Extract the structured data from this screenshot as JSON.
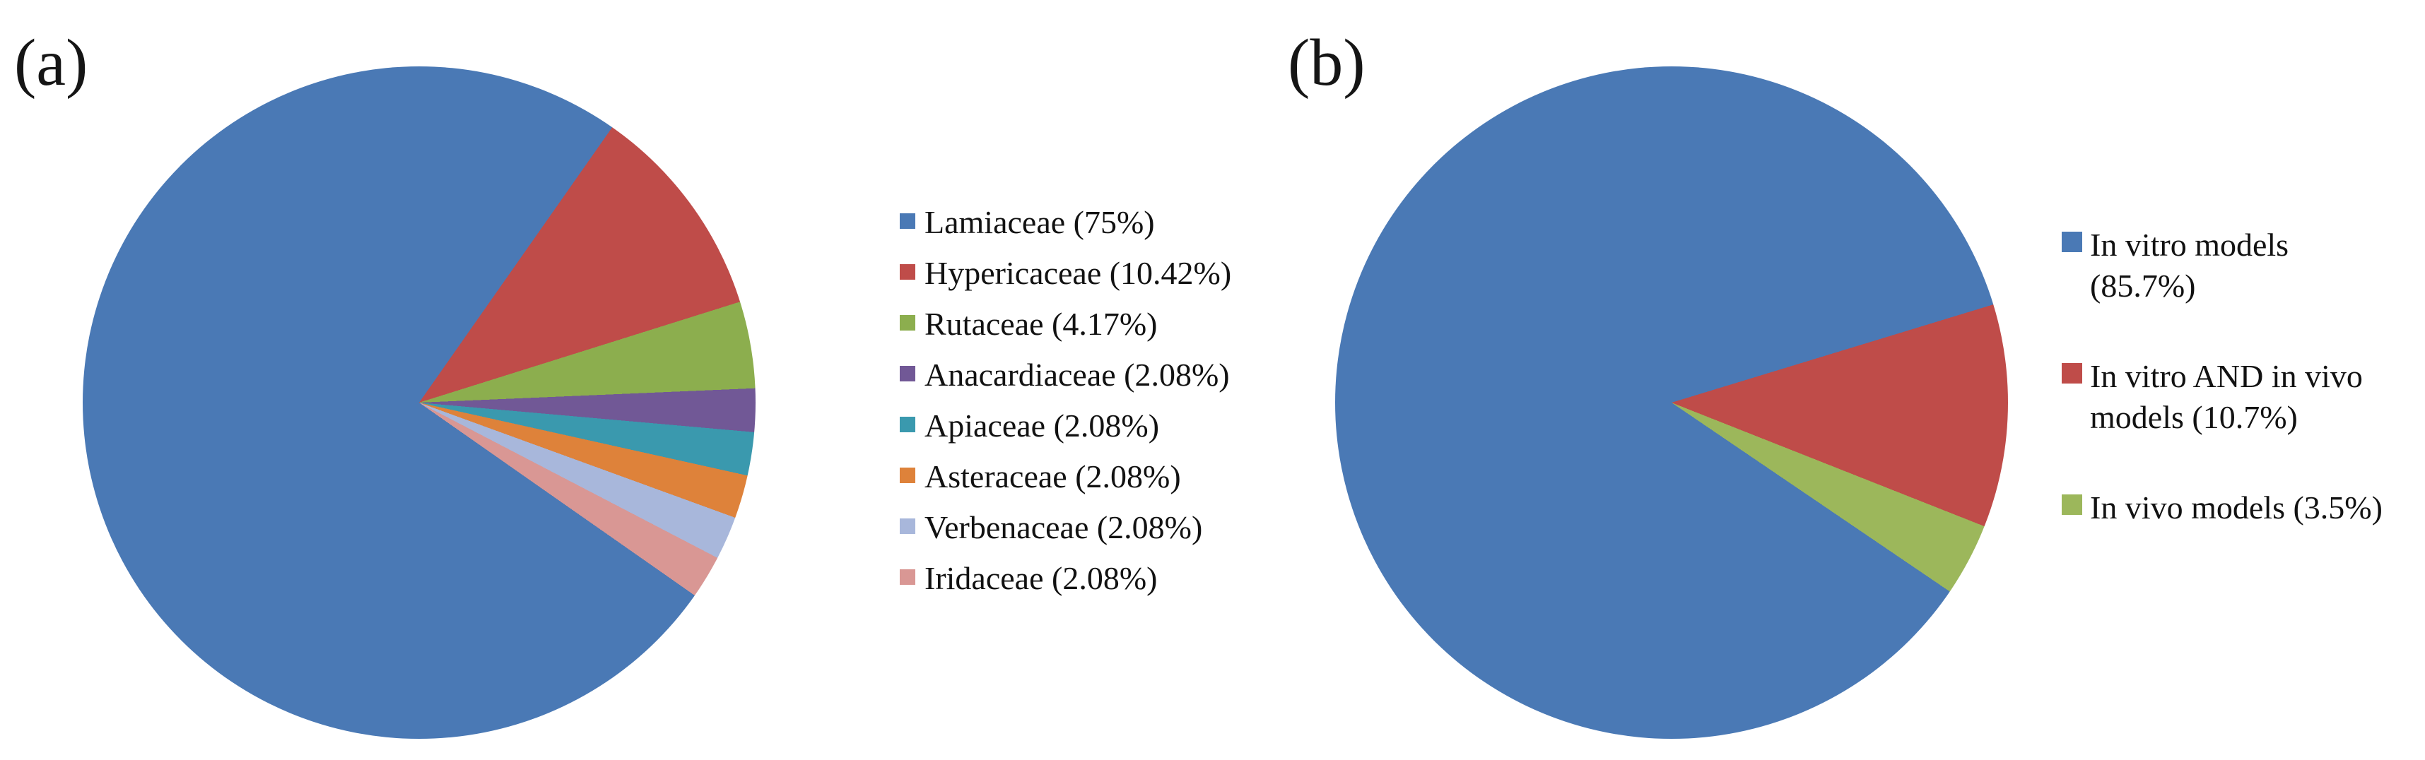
{
  "figure": {
    "background": "#ffffff",
    "panel_a_label": "(a)",
    "panel_b_label": "(b)"
  },
  "chart_data": [
    {
      "type": "pie",
      "panel_label": "(a)",
      "title": "",
      "legend_position": "right",
      "start_angle_deg": 125,
      "slices": [
        {
          "label": "Lamiaceae (75%)",
          "name": "Lamiaceae",
          "value": 75,
          "color": "#4A79B5"
        },
        {
          "label": "Hypericaceae (10.42%)",
          "name": "Hypericaceae",
          "value": 10.42,
          "color": "#BF4C49"
        },
        {
          "label": "Rutaceae (4.17%)",
          "name": "Rutaceae",
          "value": 4.17,
          "color": "#8CAE4E"
        },
        {
          "label": "Anacardiaceae (2.08%)",
          "name": "Anacardiaceae",
          "value": 2.08,
          "color": "#715896"
        },
        {
          "label": "Apiaceae (2.08%)",
          "name": "Apiaceae",
          "value": 2.08,
          "color": "#3A99AE"
        },
        {
          "label": "Asteraceae (2.08%)",
          "name": "Asteraceae",
          "value": 2.08,
          "color": "#DE823A"
        },
        {
          "label": "Verbenaceae (2.08%)",
          "name": "Verbenaceae",
          "value": 2.08,
          "color": "#A8B7DB"
        },
        {
          "label": "Iridaceae (2.08%)",
          "name": "Iridaceae",
          "value": 2.08,
          "color": "#D99794"
        }
      ]
    },
    {
      "type": "pie",
      "panel_label": "(b)",
      "title": "",
      "legend_position": "right",
      "start_angle_deg": 124.2,
      "slices": [
        {
          "label": "In vitro models (85.7%)",
          "lines": [
            "In vitro models",
            "(85.7%)"
          ],
          "name": "In vitro models",
          "value": 85.7,
          "color": "#4A79B5"
        },
        {
          "label": "In vitro AND in vivo models (10.7%)",
          "lines": [
            "In vitro AND in vivo",
            "models (10.7%)"
          ],
          "name": "In vitro AND in vivo models",
          "value": 10.7,
          "color": "#BF4C49"
        },
        {
          "label": "In vivo models (3.5%)",
          "lines": [
            "In vivo models (3.5%)"
          ],
          "name": "In vivo models",
          "value": 3.5,
          "color": "#9CB75B"
        }
      ]
    }
  ]
}
